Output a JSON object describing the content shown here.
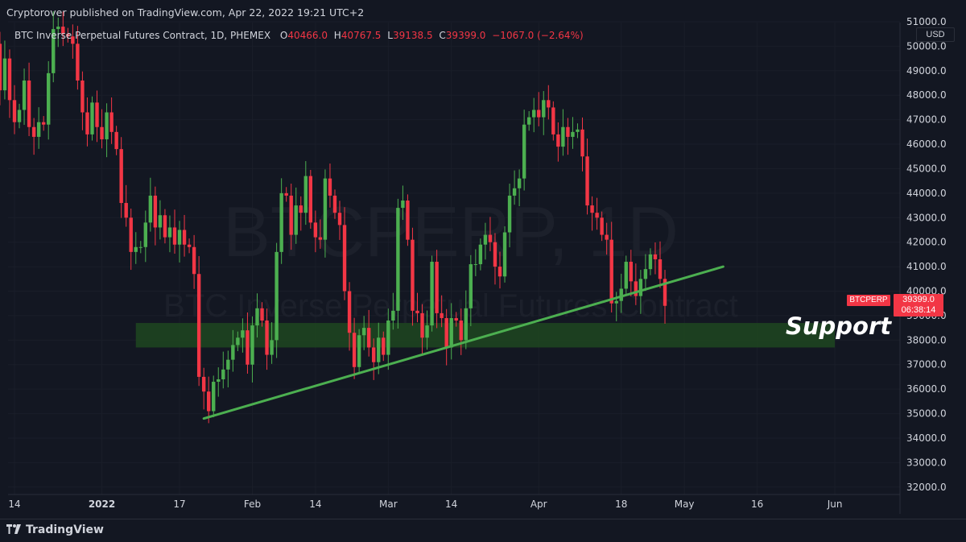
{
  "header": {
    "publisher": "Cryptorover published on TradingView.com, Apr 22, 2022 19:21 UTC+2"
  },
  "symbol": {
    "name": "BTC Inverse Perpetual Futures Contract, 1D, PHEMEX",
    "open_label": "O",
    "open": "40466.0",
    "high_label": "H",
    "high": "40767.5",
    "low_label": "L",
    "low": "39138.5",
    "close_label": "C",
    "close": "39399.0",
    "change": "−1067.0 (−2.64%)",
    "currency": "USD",
    "ticker": "BTCPERP",
    "last_price": "39399.0",
    "countdown": "06:38:14"
  },
  "watermark": {
    "main": "BTCPERP, 1D",
    "sub": "BTC Inverse Perpetual Futures Contract"
  },
  "annotation": {
    "support_label": "Support"
  },
  "footer": {
    "brand": "TradingView"
  },
  "colors": {
    "background": "#131722",
    "up": "#26a69a",
    "up_candle": "#4caf50",
    "down": "#f23645",
    "trendline": "#4caf50",
    "support_zone": "#1e4620"
  },
  "chart_data": {
    "type": "candlestick",
    "y_axis": {
      "min": 31500,
      "max": 51000,
      "ticks": [
        "51000.0",
        "50000.0",
        "49000.0",
        "48000.0",
        "47000.0",
        "46000.0",
        "45000.0",
        "44000.0",
        "43000.0",
        "42000.0",
        "41000.0",
        "40000.0",
        "39000.0",
        "38000.0",
        "37000.0",
        "36000.0",
        "35000.0",
        "34000.0",
        "33000.0",
        "32000.0"
      ]
    },
    "x_axis": {
      "ticks": [
        "14",
        "2022",
        "17",
        "Feb",
        "14",
        "Mar",
        "14",
        "Apr",
        "18",
        "May",
        "16",
        "Jun"
      ],
      "tick_dates": [
        "2021-12-14",
        "2022-01-01",
        "2022-01-17",
        "2022-02-01",
        "2022-02-14",
        "2022-03-01",
        "2022-03-14",
        "2022-04-01",
        "2022-04-18",
        "2022-05-01",
        "2022-05-16",
        "2022-06-01"
      ]
    },
    "support_zone": {
      "from_date": "2022-01-08",
      "to_date": "2022-06-01",
      "low": 37700,
      "high": 38700
    },
    "trendline": {
      "start": {
        "date": "2022-01-22",
        "price": 34800
      },
      "end": {
        "date": "2022-05-09",
        "price": 41000
      }
    },
    "start_date": "2021-12-10",
    "closes": [
      50100,
      48200,
      49500,
      47800,
      46900,
      47400,
      48600,
      46700,
      46300,
      46900,
      46800,
      48900,
      50700,
      50800,
      50500,
      50400,
      50100,
      48600,
      47300,
      46400,
      47700,
      46700,
      46200,
      47300,
      46500,
      45800,
      43600,
      43000,
      41600,
      41800,
      41800,
      42800,
      43900,
      42600,
      43100,
      42200,
      42600,
      41900,
      42500,
      41900,
      41800,
      40700,
      36500,
      35900,
      35100,
      36300,
      36400,
      36800,
      37200,
      37800,
      38100,
      38400,
      37000,
      38600,
      39300,
      38800,
      37400,
      38000,
      41600,
      44000,
      43900,
      42300,
      43500,
      43200,
      44700,
      42800,
      42200,
      42100,
      44600,
      43900,
      43200,
      42700,
      40000,
      38300,
      36900,
      38200,
      38500,
      37700,
      37100,
      38100,
      37400,
      38800,
      39200,
      43400,
      43700,
      42100,
      39200,
      39100,
      38100,
      38600,
      41200,
      39100,
      38900,
      37700,
      38900,
      38800,
      38000,
      39300,
      41100,
      41100,
      41900,
      42300,
      42000,
      41000,
      40600,
      42400,
      43900,
      44200,
      44600,
      46800,
      47100,
      47400,
      47100,
      47800,
      47500,
      46400,
      45900,
      46700,
      46300,
      46500,
      46600,
      45500,
      43500,
      43200,
      43000,
      42300,
      42100,
      39500,
      39600,
      40100,
      41200,
      40400,
      39800,
      40500,
      40900,
      41500,
      41300,
      40500,
      39400
    ]
  }
}
